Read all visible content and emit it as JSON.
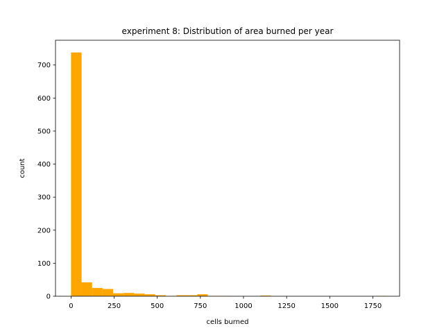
{
  "chart_data": {
    "type": "bar",
    "title": "experiment 8: Distribution of area burned per year",
    "xlabel": "cells burned",
    "ylabel": "count",
    "xlim": [
      -90,
      1905
    ],
    "ylim": [
      0,
      775
    ],
    "xticks": [
      0,
      250,
      500,
      750,
      1000,
      1250,
      1500,
      1750
    ],
    "yticks": [
      0,
      100,
      200,
      300,
      400,
      500,
      600,
      700
    ],
    "grid": false,
    "bar_color": "#ffa500",
    "bins": [
      {
        "x0": 0,
        "x1": 61,
        "count": 738
      },
      {
        "x0": 61,
        "x1": 122,
        "count": 42
      },
      {
        "x0": 122,
        "x1": 183,
        "count": 25
      },
      {
        "x0": 183,
        "x1": 244,
        "count": 22
      },
      {
        "x0": 244,
        "x1": 305,
        "count": 9
      },
      {
        "x0": 305,
        "x1": 366,
        "count": 10
      },
      {
        "x0": 366,
        "x1": 427,
        "count": 8
      },
      {
        "x0": 427,
        "x1": 488,
        "count": 6
      },
      {
        "x0": 488,
        "x1": 549,
        "count": 3
      },
      {
        "x0": 549,
        "x1": 610,
        "count": 1
      },
      {
        "x0": 610,
        "x1": 671,
        "count": 3
      },
      {
        "x0": 671,
        "x1": 732,
        "count": 3
      },
      {
        "x0": 732,
        "x1": 793,
        "count": 6
      },
      {
        "x0": 793,
        "x1": 854,
        "count": 1
      },
      {
        "x0": 854,
        "x1": 915,
        "count": 1
      },
      {
        "x0": 915,
        "x1": 976,
        "count": 0
      },
      {
        "x0": 976,
        "x1": 1037,
        "count": 0
      },
      {
        "x0": 1037,
        "x1": 1098,
        "count": 0
      },
      {
        "x0": 1098,
        "x1": 1159,
        "count": 2
      },
      {
        "x0": 1159,
        "x1": 1220,
        "count": 0
      },
      {
        "x0": 1220,
        "x1": 1281,
        "count": 0
      },
      {
        "x0": 1281,
        "x1": 1342,
        "count": 0
      },
      {
        "x0": 1342,
        "x1": 1403,
        "count": 0
      },
      {
        "x0": 1403,
        "x1": 1464,
        "count": 0
      },
      {
        "x0": 1464,
        "x1": 1525,
        "count": 0
      },
      {
        "x0": 1525,
        "x1": 1586,
        "count": 0
      },
      {
        "x0": 1586,
        "x1": 1647,
        "count": 0
      },
      {
        "x0": 1647,
        "x1": 1708,
        "count": 0
      },
      {
        "x0": 1708,
        "x1": 1769,
        "count": 0
      },
      {
        "x0": 1769,
        "x1": 1830,
        "count": 1
      }
    ]
  }
}
